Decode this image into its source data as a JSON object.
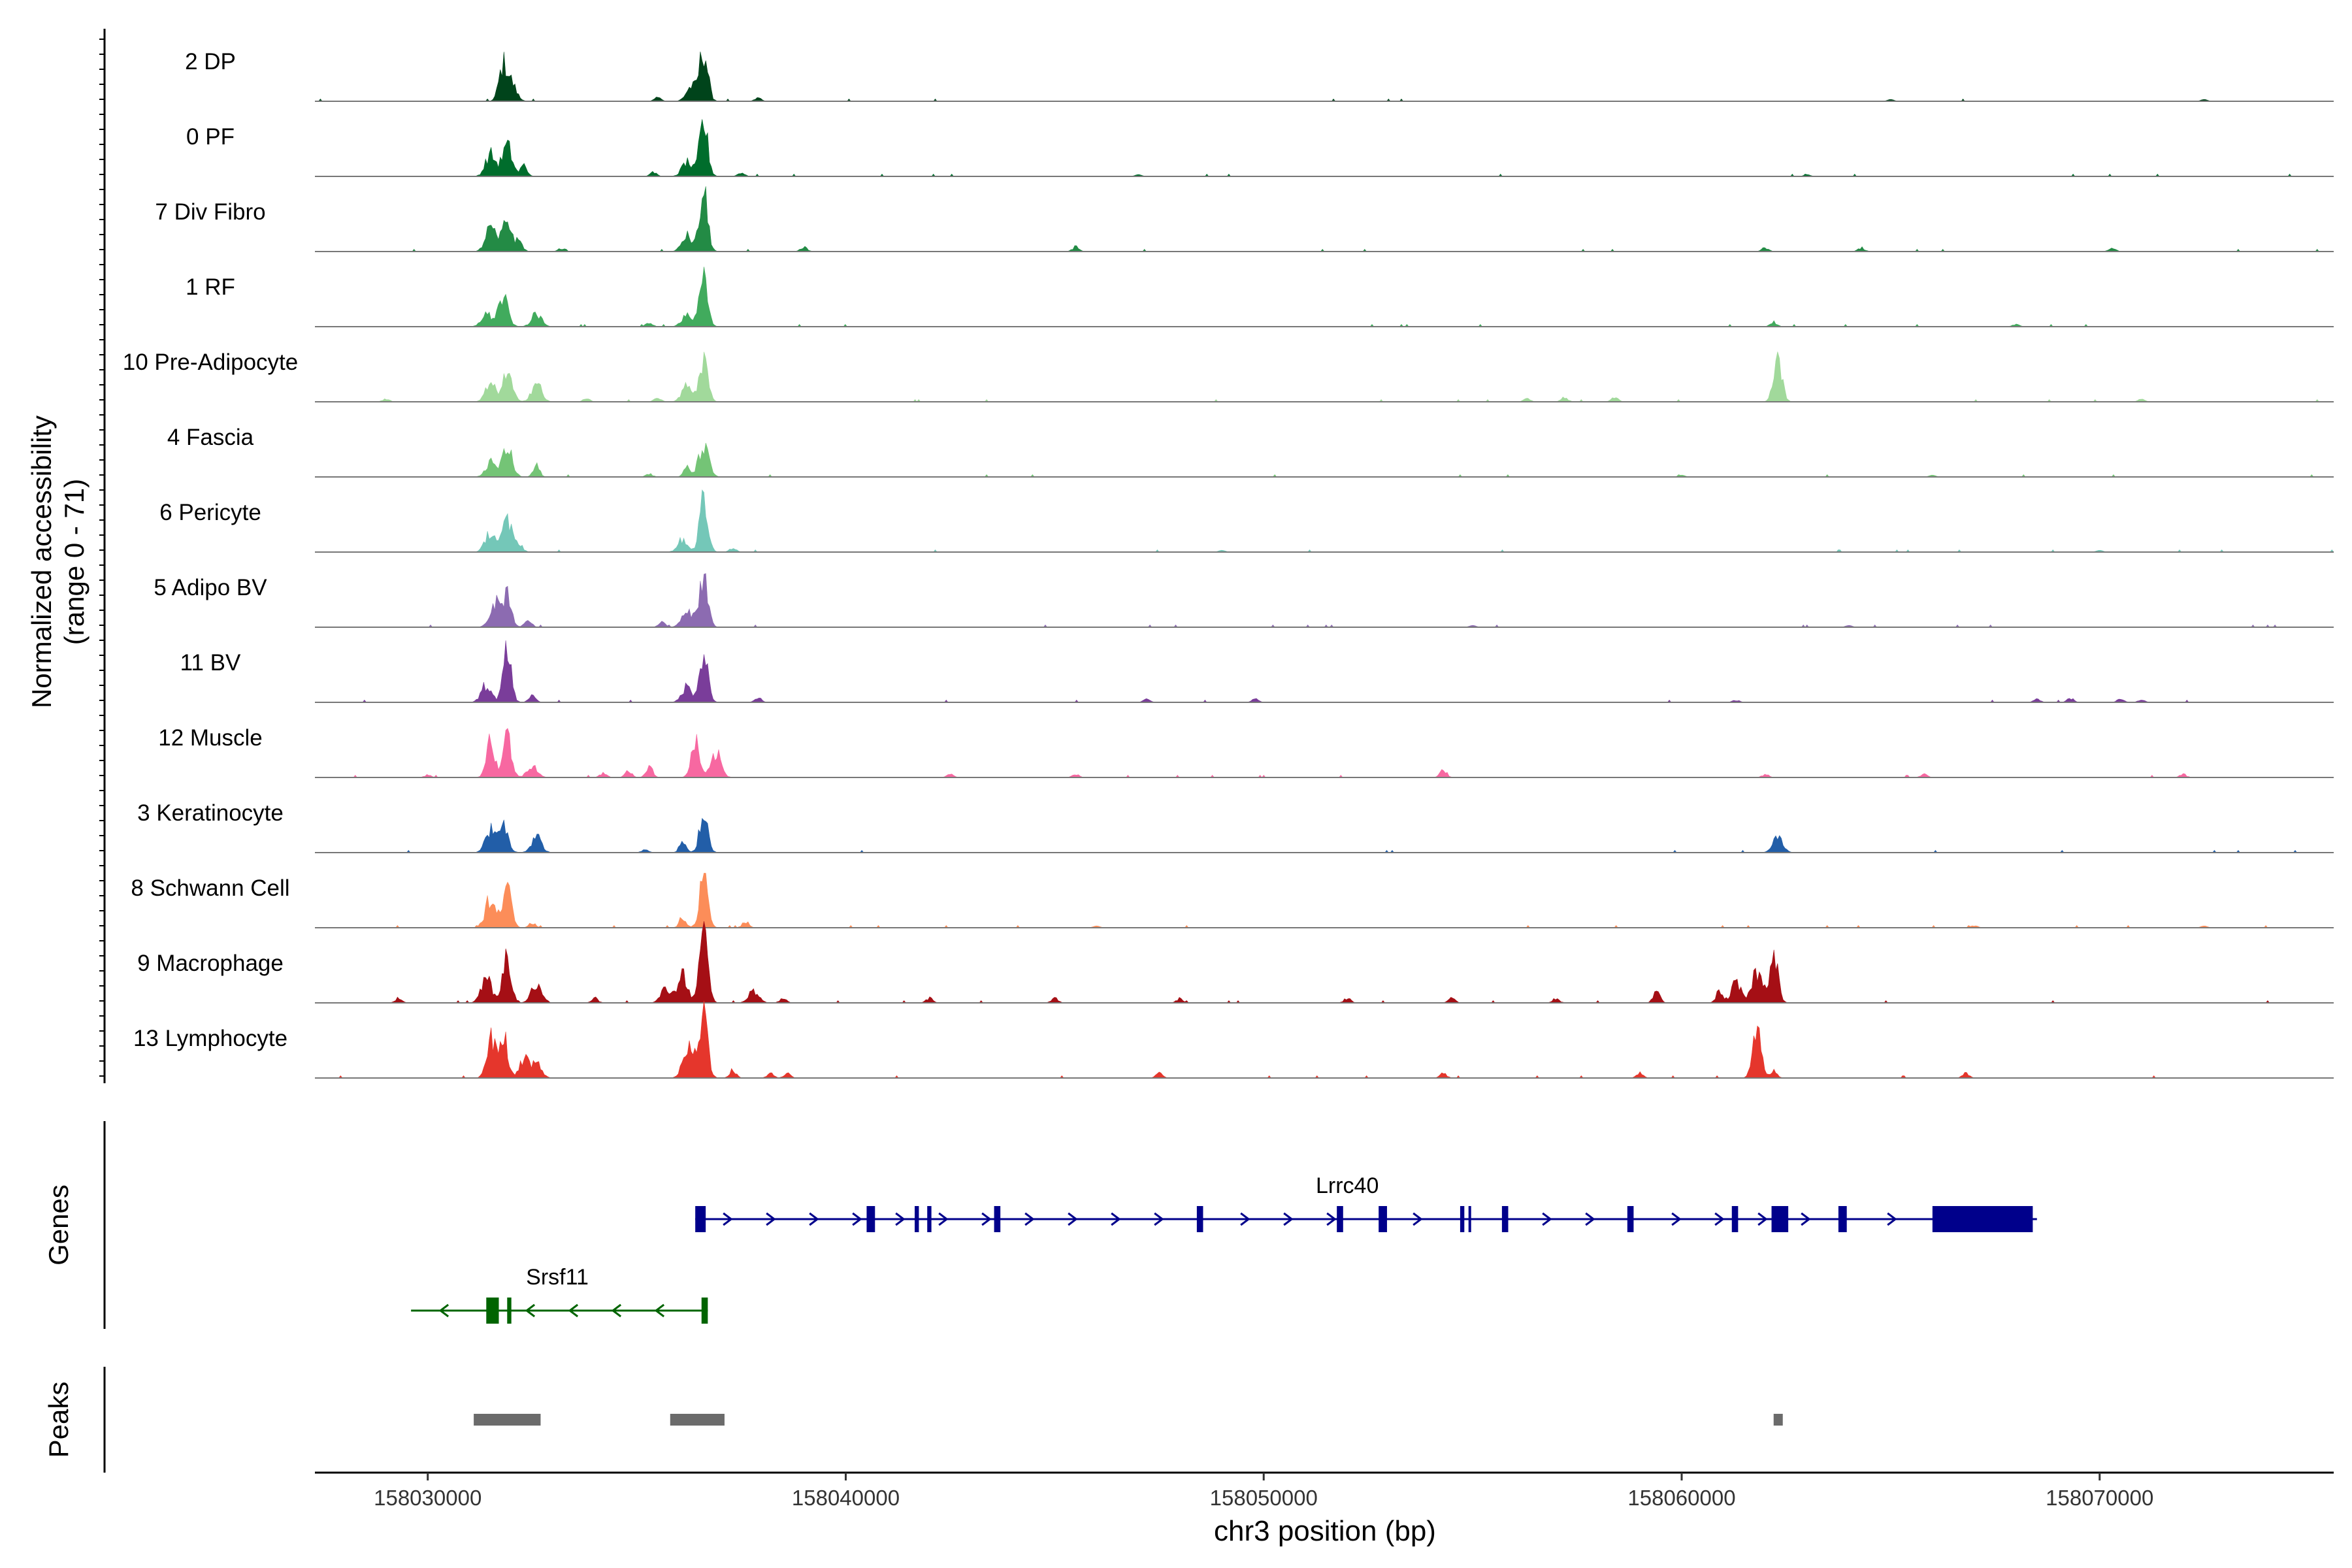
{
  "chart_data": {
    "type": "area",
    "title": "",
    "ylabel_line1": "Normalized accessibility",
    "ylabel_line2": "(range 0 - 71)",
    "xlabel": "chr3 position (bp)",
    "xlim": [
      158027300,
      158075600
    ],
    "ylim": [
      0,
      71
    ],
    "x_ticks": [
      158030000,
      158040000,
      158050000,
      158060000,
      158070000
    ],
    "x_tick_labels": [
      "158030000",
      "158040000",
      "158050000",
      "158060000",
      "158070000"
    ],
    "panel_labels": {
      "genes": "Genes",
      "peaks": "Peaks"
    },
    "tracks": [
      {
        "name": "2 DP",
        "color": "#00441b",
        "peaks": [
          [
            158031800,
            42
          ],
          [
            158032000,
            22
          ],
          [
            158036600,
            64
          ],
          [
            158036300,
            18
          ],
          [
            158035500,
            5
          ],
          [
            158037900,
            4
          ],
          [
            158065000,
            2
          ],
          [
            158072500,
            2
          ]
        ]
      },
      {
        "name": "0 PF",
        "color": "#006d2c",
        "peaks": [
          [
            158031500,
            28
          ],
          [
            158031900,
            38
          ],
          [
            158032300,
            14
          ],
          [
            158036600,
            68
          ],
          [
            158036200,
            18
          ],
          [
            158035400,
            5
          ],
          [
            158037500,
            5
          ],
          [
            158047000,
            2
          ],
          [
            158063000,
            2
          ]
        ]
      },
      {
        "name": "7 Div Fibro",
        "color": "#238b45",
        "peaks": [
          [
            158031500,
            30
          ],
          [
            158031900,
            38
          ],
          [
            158032200,
            12
          ],
          [
            158036600,
            72
          ],
          [
            158036200,
            20
          ],
          [
            158039000,
            6
          ],
          [
            158045500,
            6
          ],
          [
            158062000,
            5
          ],
          [
            158064300,
            5
          ],
          [
            158070300,
            5
          ],
          [
            158033200,
            4
          ]
        ]
      },
      {
        "name": "1 RF",
        "color": "#41ab5d",
        "peaks": [
          [
            158031400,
            16
          ],
          [
            158031800,
            36
          ],
          [
            158032600,
            16
          ],
          [
            158036600,
            58
          ],
          [
            158036200,
            16
          ],
          [
            158035300,
            5
          ],
          [
            158062200,
            6
          ],
          [
            158068000,
            3
          ]
        ]
      },
      {
        "name": "10 Pre-Adipocyte",
        "color": "#a1d99b",
        "peaks": [
          [
            158031500,
            22
          ],
          [
            158031900,
            34
          ],
          [
            158032600,
            24
          ],
          [
            158036600,
            56
          ],
          [
            158036200,
            20
          ],
          [
            158035500,
            6
          ],
          [
            158062300,
            56
          ],
          [
            158057200,
            6
          ],
          [
            158058400,
            6
          ],
          [
            158056300,
            4
          ],
          [
            158029000,
            4
          ],
          [
            158033800,
            4
          ],
          [
            158071000,
            3
          ]
        ]
      },
      {
        "name": "4 Fascia",
        "color": "#74c476",
        "peaks": [
          [
            158031500,
            18
          ],
          [
            158031900,
            36
          ],
          [
            158032600,
            14
          ],
          [
            158036600,
            38
          ],
          [
            158036200,
            12
          ],
          [
            158035300,
            4
          ],
          [
            158060000,
            2
          ],
          [
            158066000,
            2
          ]
        ]
      },
      {
        "name": "6 Pericyte",
        "color": "#74c7b8",
        "peaks": [
          [
            158031500,
            26
          ],
          [
            158031900,
            38
          ],
          [
            158032200,
            10
          ],
          [
            158036600,
            66
          ],
          [
            158036100,
            16
          ],
          [
            158037300,
            5
          ],
          [
            158049000,
            2
          ],
          [
            158070000,
            2
          ]
        ]
      },
      {
        "name": "5 Adipo BV",
        "color": "#8c6bb1",
        "peaks": [
          [
            158031600,
            32
          ],
          [
            158031900,
            44
          ],
          [
            158032400,
            10
          ],
          [
            158036600,
            72
          ],
          [
            158036200,
            24
          ],
          [
            158035600,
            6
          ],
          [
            158055000,
            2
          ],
          [
            158064000,
            2
          ]
        ]
      },
      {
        "name": "11 BV",
        "color": "#7a3d9a",
        "peaks": [
          [
            158031400,
            22
          ],
          [
            158031900,
            62
          ],
          [
            158032500,
            10
          ],
          [
            158036600,
            66
          ],
          [
            158036200,
            20
          ],
          [
            158037900,
            6
          ],
          [
            158047200,
            4
          ],
          [
            158049800,
            4
          ],
          [
            158061300,
            3
          ],
          [
            158068500,
            4
          ],
          [
            158069300,
            5
          ],
          [
            158070500,
            4
          ],
          [
            158071000,
            3
          ]
        ]
      },
      {
        "name": "12 Muscle",
        "color": "#f768a1",
        "peaks": [
          [
            158031500,
            48
          ],
          [
            158031900,
            54
          ],
          [
            158032500,
            16
          ],
          [
            158036400,
            44
          ],
          [
            158036900,
            30
          ],
          [
            158035300,
            14
          ],
          [
            158034800,
            8
          ],
          [
            158034200,
            6
          ],
          [
            158054300,
            10
          ],
          [
            158042500,
            4
          ],
          [
            158045500,
            4
          ],
          [
            158062000,
            4
          ],
          [
            158065800,
            4
          ],
          [
            158072000,
            4
          ],
          [
            158030000,
            3
          ]
        ]
      },
      {
        "name": "3 Keratinocyte",
        "color": "#225ea8",
        "peaks": [
          [
            158031500,
            28
          ],
          [
            158031800,
            34
          ],
          [
            158032600,
            20
          ],
          [
            158036600,
            52
          ],
          [
            158036100,
            14
          ],
          [
            158062300,
            18
          ],
          [
            158035200,
            4
          ]
        ]
      },
      {
        "name": "8 Schwann Cell",
        "color": "#fc8d59",
        "peaks": [
          [
            158031500,
            38
          ],
          [
            158031900,
            60
          ],
          [
            158032500,
            6
          ],
          [
            158036600,
            62
          ],
          [
            158036100,
            14
          ],
          [
            158037600,
            8
          ],
          [
            158046000,
            2
          ],
          [
            158067000,
            3
          ],
          [
            158072500,
            2
          ]
        ]
      },
      {
        "name": "9 Macrophage",
        "color": "#a50f15",
        "peaks": [
          [
            158031400,
            34
          ],
          [
            158031900,
            62
          ],
          [
            158032600,
            24
          ],
          [
            158036600,
            88
          ],
          [
            158036100,
            34
          ],
          [
            158035700,
            18
          ],
          [
            158037800,
            16
          ],
          [
            158062200,
            70
          ],
          [
            158061800,
            40
          ],
          [
            158061300,
            24
          ],
          [
            158060900,
            14
          ],
          [
            158059400,
            14
          ],
          [
            158038500,
            6
          ],
          [
            158042000,
            6
          ],
          [
            158045000,
            6
          ],
          [
            158048000,
            6
          ],
          [
            158052000,
            6
          ],
          [
            158054500,
            6
          ],
          [
            158057000,
            6
          ],
          [
            158034000,
            6
          ],
          [
            158029300,
            6
          ]
        ]
      },
      {
        "name": "13 Lymphocyte",
        "color": "#e5362c",
        "peaks": [
          [
            158031500,
            52
          ],
          [
            158031800,
            56
          ],
          [
            158032300,
            24
          ],
          [
            158032600,
            18
          ],
          [
            158036600,
            86
          ],
          [
            158036200,
            24
          ],
          [
            158036300,
            18
          ],
          [
            158037300,
            10
          ],
          [
            158038200,
            6
          ],
          [
            158038600,
            6
          ],
          [
            158061800,
            66
          ],
          [
            158062200,
            10
          ],
          [
            158047500,
            6
          ],
          [
            158054300,
            6
          ],
          [
            158059000,
            6
          ],
          [
            158066800,
            6
          ]
        ]
      }
    ],
    "genes": [
      {
        "name": "Lrrc40",
        "strand": "+",
        "color": "#00008b",
        "start": 158036400,
        "end": 158068500,
        "exons": [
          [
            158036400,
            158036650
          ],
          [
            158040500,
            158040700
          ],
          [
            158041650,
            158041750
          ],
          [
            158041950,
            158042050
          ],
          [
            158043550,
            158043700
          ],
          [
            158048400,
            158048550
          ],
          [
            158051750,
            158051900
          ],
          [
            158052750,
            158052950
          ],
          [
            158054700,
            158054800
          ],
          [
            158054900,
            158054950
          ],
          [
            158055700,
            158055850
          ],
          [
            158058700,
            158058850
          ],
          [
            158061200,
            158061350
          ],
          [
            158062150,
            158062550
          ],
          [
            158063750,
            158063950
          ],
          [
            158066000,
            158068400
          ]
        ]
      },
      {
        "name": "Srsf11",
        "strand": "-",
        "color": "#006400",
        "start": 158029600,
        "end": 158036700,
        "exons": [
          [
            158031400,
            158031700
          ],
          [
            158031900,
            158032000
          ],
          [
            158036550,
            158036700
          ]
        ]
      }
    ],
    "peak_regions": [
      [
        158031100,
        158032700
      ],
      [
        158035800,
        158037100
      ],
      [
        158062200,
        158062400
      ]
    ]
  }
}
